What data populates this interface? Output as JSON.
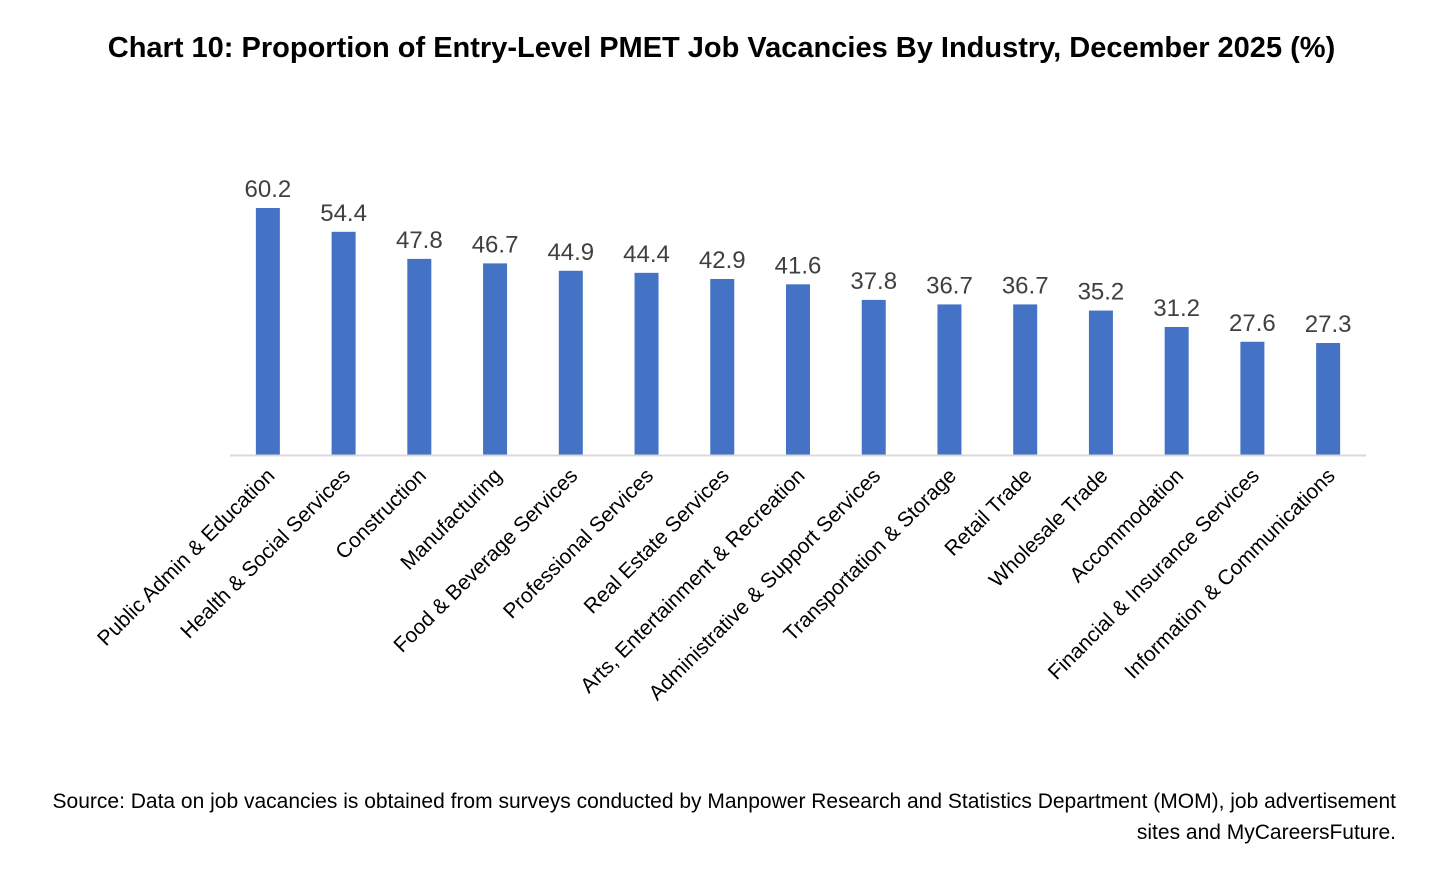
{
  "chart_data": {
    "type": "bar",
    "title": "Chart 10: Proportion of Entry-Level PMET Job Vacancies By Industry, December 2025 (%)",
    "xlabel": "",
    "ylabel": "",
    "ylim": [
      0,
      60.2
    ],
    "grid": false,
    "legend": "none",
    "categories": [
      "Public Admin & Education",
      "Health & Social Services",
      "Construction",
      "Manufacturing",
      "Food & Beverage Services",
      "Professional Services",
      "Real Estate Services",
      "Arts, Entertainment & Recreation",
      "Administrative & Support Services",
      "Transportation & Storage",
      "Retail Trade",
      "Wholesale Trade",
      "Accommodation",
      "Financial & Insurance Services",
      "Information & Communications"
    ],
    "values": [
      60.2,
      54.4,
      47.8,
      46.7,
      44.9,
      44.4,
      42.9,
      41.6,
      37.8,
      36.7,
      36.7,
      35.2,
      31.2,
      27.6,
      27.3
    ],
    "data_labels": [
      "60.2",
      "54.4",
      "47.8",
      "46.7",
      "44.9",
      "44.4",
      "42.9",
      "41.6",
      "37.8",
      "36.7",
      "36.7",
      "35.2",
      "31.2",
      "27.6",
      "27.3"
    ],
    "bar_color": "#4472C4",
    "axis_color": "#D9D9D9",
    "label_color": "#404040"
  },
  "source": "Source: Data on job vacancies is obtained from surveys conducted by Manpower Research and Statistics Department (MOM), job advertisement sites and MyCareersFuture."
}
